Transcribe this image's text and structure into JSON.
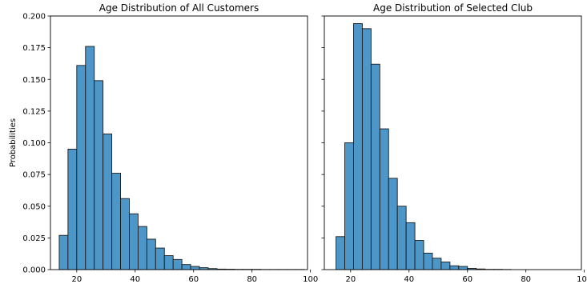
{
  "chart_data": [
    {
      "type": "histogram",
      "title": "Age Distribution of All Customers",
      "xlabel": "",
      "ylabel": "Probabilities",
      "xlim": [
        11,
        99
      ],
      "ylim": [
        0,
        0.2
      ],
      "xticks": [
        20,
        40,
        60,
        80,
        100
      ],
      "yticks": [
        0.0,
        0.025,
        0.05,
        0.075,
        0.1,
        0.125,
        0.15,
        0.175,
        0.2
      ],
      "ytick_labels": [
        "0.000",
        "0.025",
        "0.050",
        "0.075",
        "0.100",
        "0.125",
        "0.150",
        "0.175",
        "0.200"
      ],
      "grid": false,
      "bar_color": "#4c97c8",
      "edge_color": "#1a1a1a",
      "bin_edges": [
        14,
        17,
        20,
        23,
        26,
        29,
        32,
        35,
        38,
        41,
        44,
        47,
        50,
        53,
        56,
        59,
        62,
        65,
        68,
        71,
        74,
        77,
        80,
        83,
        86,
        89,
        92,
        95,
        98
      ],
      "values": [
        0.027,
        0.095,
        0.161,
        0.176,
        0.149,
        0.107,
        0.076,
        0.056,
        0.044,
        0.034,
        0.024,
        0.017,
        0.011,
        0.008,
        0.004,
        0.0025,
        0.0015,
        0.0008,
        0.0004,
        0.0003,
        0.0002,
        0.0002,
        0.0002,
        0.0001,
        0.0001,
        0.0001,
        0.0001,
        0.0001
      ]
    },
    {
      "type": "histogram",
      "title": "Age Distribution of Selected Club",
      "xlabel": "",
      "ylabel": "",
      "xlim": [
        11,
        99
      ],
      "ylim": [
        0,
        0.2
      ],
      "xticks": [
        20,
        40,
        60,
        80,
        100
      ],
      "grid": false,
      "sharey": true,
      "bar_color": "#4c97c8",
      "edge_color": "#1a1a1a",
      "bin_edges": [
        15,
        18,
        21,
        24,
        27,
        30,
        33,
        36,
        39,
        42,
        45,
        48,
        51,
        54,
        57,
        60,
        63,
        66,
        69,
        72,
        75
      ],
      "values": [
        0.026,
        0.1,
        0.194,
        0.19,
        0.162,
        0.111,
        0.072,
        0.05,
        0.037,
        0.023,
        0.013,
        0.009,
        0.006,
        0.003,
        0.0025,
        0.001,
        0.0005,
        0.0002,
        0.0002,
        0.0001
      ]
    }
  ]
}
